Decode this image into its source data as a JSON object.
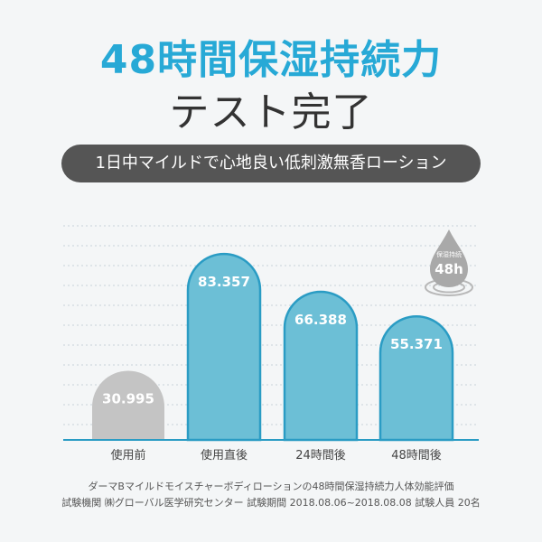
{
  "header": {
    "title": "48時間保湿持続力",
    "subtitle": "テスト完了",
    "tagline": "1日中マイルドで心地良い低刺激無香ローション"
  },
  "badge": {
    "top_text": "保湿持続",
    "main_text": "48h"
  },
  "chart_data": {
    "type": "bar",
    "categories": [
      "使用前",
      "使用直後",
      "24時間後",
      "48時間後"
    ],
    "values": [
      30.995,
      83.357,
      66.388,
      55.371
    ],
    "value_labels": [
      "30.995",
      "83.357",
      "66.388",
      "55.371"
    ],
    "ylim": [
      0,
      100
    ],
    "grid": true,
    "title": "",
    "xlabel": "",
    "ylabel": "",
    "colors": {
      "baseline": "#c4c4c4",
      "after": "#6cbfd6",
      "outline": "#2a9cc4",
      "axis": "#2a9cc4"
    }
  },
  "footnotes": [
    "ダーマBマイルドモイスチャーボディローションの48時間保湿持続力人体効能評価",
    "試験機関 ㈱グローバル医学研究センター 試験期間 2018.08.06~2018.08.08 試験人員 20名"
  ]
}
